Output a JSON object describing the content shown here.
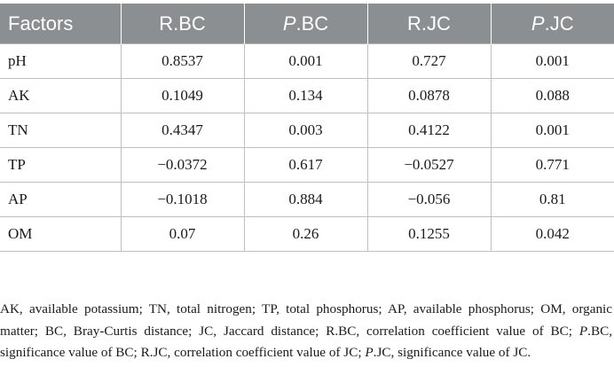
{
  "table": {
    "headers": [
      {
        "prefix": "",
        "italic": "",
        "rest": "Factors"
      },
      {
        "prefix": "R.BC",
        "italic": "",
        "rest": ""
      },
      {
        "prefix": "",
        "italic": "P",
        "rest": ".BC"
      },
      {
        "prefix": "R.JC",
        "italic": "",
        "rest": ""
      },
      {
        "prefix": "",
        "italic": "P",
        "rest": ".JC"
      }
    ],
    "rows": [
      [
        "pH",
        "0.8537",
        "0.001",
        "0.727",
        "0.001"
      ],
      [
        "AK",
        "0.1049",
        "0.134",
        "0.0878",
        "0.088"
      ],
      [
        "TN",
        "0.4347",
        "0.003",
        "0.4122",
        "0.001"
      ],
      [
        "TP",
        "−0.0372",
        "0.617",
        "−0.0527",
        "0.771"
      ],
      [
        "AP",
        "−0.1018",
        "0.884",
        "−0.056",
        "0.81"
      ],
      [
        "OM",
        "0.07",
        "0.26",
        "0.1255",
        "0.042"
      ]
    ]
  },
  "footnote": {
    "part1": "AK, available potassium; TN, total nitrogen; TP, total phosphorus; AP, available phosphorus; OM, organic matter; BC, Bray-Curtis distance; JC, Jaccard distance; R.BC, correlation coefficient value of BC; ",
    "italic1": "P",
    "part2": ".BC, significance value of BC; R.JC, correlation coefficient value of JC; ",
    "italic2": "P",
    "part3": ".JC, significance value of JC."
  },
  "colors": {
    "header_bg": "#8c8f92",
    "header_text": "#ffffff",
    "rule": "#bfbfbf"
  }
}
